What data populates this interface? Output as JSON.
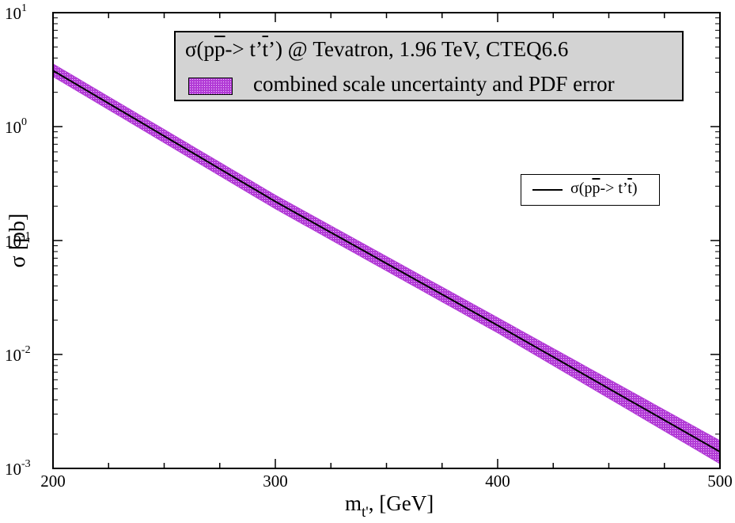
{
  "chart_data": {
    "type": "line",
    "xlabel_main": "m",
    "xlabel_sub": "t'",
    "xlabel_unit": ", [GeV]",
    "ylabel": "σ [pb]",
    "xlim": [
      200,
      500
    ],
    "ylim": [
      0.001,
      10
    ],
    "yscale": "log",
    "grid": false,
    "x_ticks": [
      200,
      300,
      400,
      500
    ],
    "x_tick_labels": [
      "200",
      "300",
      "400",
      "500"
    ],
    "y_ticks_exp": [
      1,
      0,
      -1,
      -2,
      -3
    ],
    "y_tick_base": "10",
    "y_tick_exponents": [
      "1",
      "0",
      "-1",
      "-2",
      "-3"
    ],
    "title": {
      "prefix": "σ(p",
      "pbar": "p",
      "middle": "-> t’",
      "tbar": "t",
      "suffix": "’) @ Tevatron, 1.96 TeV, CTEQ6.6"
    },
    "band_legend": "combined scale uncertainty and PDF error",
    "line_legend": {
      "prefix": "σ(p",
      "pbar": "p",
      "middle": "-> t’",
      "tbar": "t",
      "suffix": ")"
    },
    "colors": {
      "band": "#b23bd6",
      "band_dots": "#f3d2ff",
      "line": "#000000"
    },
    "series": [
      {
        "x": [
          200,
          300,
          400,
          500
        ],
        "values": [
          3.1,
          0.22,
          0.018,
          0.0014
        ],
        "band_upper": [
          3.55,
          0.25,
          0.021,
          0.00175
        ],
        "band_lower": [
          2.75,
          0.19,
          0.0155,
          0.0011
        ]
      }
    ]
  }
}
